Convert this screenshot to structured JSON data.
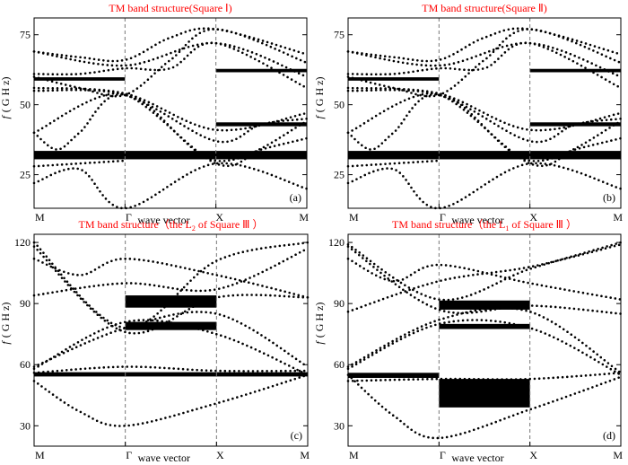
{
  "chart_data": [
    {
      "type": "scatter",
      "title": "TM band structure(Square Ⅰ)",
      "panel_label": "(a)",
      "ylabel_italic": "f",
      "ylabel_unit": "( G H z)",
      "xlabel": "wave vector",
      "x_ticks": [
        "M",
        "Γ",
        "X",
        "M"
      ],
      "ylim": [
        13,
        81
      ],
      "y_ticks": [
        25,
        50,
        75
      ],
      "sym_lines_at": [
        1,
        2
      ],
      "gaps": [
        {
          "x": [
            0,
            3
          ],
          "y": [
            30.5,
            33.5
          ]
        },
        {
          "x": [
            0,
            1
          ],
          "y": [
            58.6,
            59.8
          ]
        },
        {
          "x": [
            2,
            3
          ],
          "y": [
            42.3,
            43.7
          ]
        },
        {
          "x": [
            2,
            3
          ],
          "y": [
            61.6,
            62.8
          ]
        }
      ],
      "bands": [
        [
          [
            0,
            28
          ],
          [
            1,
            30
          ]
        ],
        [
          [
            0,
            22
          ],
          [
            0.5,
            27
          ],
          [
            1,
            13
          ],
          [
            2,
            29
          ],
          [
            3,
            20
          ]
        ],
        [
          [
            0,
            40
          ],
          [
            0.25,
            34
          ],
          [
            0.5,
            40
          ],
          [
            1,
            53.5
          ],
          [
            2,
            29
          ],
          [
            2.5,
            34
          ],
          [
            3,
            38
          ]
        ],
        [
          [
            0,
            40
          ],
          [
            1,
            54
          ],
          [
            2,
            30
          ],
          [
            3,
            44
          ]
        ],
        [
          [
            0,
            55
          ],
          [
            1,
            53.5
          ],
          [
            2,
            37
          ],
          [
            2.5,
            43
          ],
          [
            3,
            45
          ]
        ],
        [
          [
            0,
            56
          ],
          [
            1,
            54
          ],
          [
            2,
            41
          ],
          [
            3,
            47
          ]
        ],
        [
          [
            0,
            60
          ],
          [
            0.5,
            56
          ],
          [
            1,
            53.5
          ],
          [
            1.5,
            66
          ],
          [
            2,
            77
          ],
          [
            3,
            65
          ]
        ],
        [
          [
            0,
            61
          ],
          [
            0.5,
            61
          ],
          [
            1,
            63
          ],
          [
            1.5,
            63
          ],
          [
            2,
            72
          ],
          [
            3,
            56
          ]
        ],
        [
          [
            0,
            69
          ],
          [
            1,
            64
          ],
          [
            2,
            72
          ],
          [
            3,
            60
          ]
        ],
        [
          [
            0,
            69
          ],
          [
            0.5,
            67
          ],
          [
            1,
            66
          ],
          [
            1.5,
            74
          ],
          [
            2,
            77
          ],
          [
            3,
            68
          ]
        ]
      ]
    },
    {
      "type": "scatter",
      "title": "TM band structure(Square Ⅱ)",
      "panel_label": "(b)",
      "ylabel_italic": "f",
      "ylabel_unit": "( G H z)",
      "xlabel": "wave vector",
      "x_ticks": [
        "M",
        "Γ",
        "X",
        "M"
      ],
      "ylim": [
        13,
        81
      ],
      "y_ticks": [
        25,
        50,
        75
      ],
      "sym_lines_at": [
        1,
        2
      ],
      "gaps": [
        {
          "x": [
            0,
            3
          ],
          "y": [
            30.5,
            33.5
          ]
        },
        {
          "x": [
            0,
            1
          ],
          "y": [
            58.6,
            59.8
          ]
        },
        {
          "x": [
            2,
            3
          ],
          "y": [
            42.3,
            43.7
          ]
        },
        {
          "x": [
            2,
            3
          ],
          "y": [
            61.6,
            62.8
          ]
        }
      ],
      "bands": [
        [
          [
            0,
            28
          ],
          [
            1,
            30
          ]
        ],
        [
          [
            0,
            22
          ],
          [
            0.5,
            27
          ],
          [
            1,
            13
          ],
          [
            2,
            29
          ],
          [
            3,
            20
          ]
        ],
        [
          [
            0,
            40
          ],
          [
            0.25,
            34
          ],
          [
            0.5,
            40
          ],
          [
            1,
            53.5
          ],
          [
            2,
            29
          ],
          [
            2.5,
            34
          ],
          [
            3,
            38
          ]
        ],
        [
          [
            0,
            40
          ],
          [
            1,
            54
          ],
          [
            2,
            30
          ],
          [
            3,
            44
          ]
        ],
        [
          [
            0,
            55
          ],
          [
            1,
            53.5
          ],
          [
            2,
            37
          ],
          [
            2.5,
            43
          ],
          [
            3,
            45
          ]
        ],
        [
          [
            0,
            56
          ],
          [
            1,
            54
          ],
          [
            2,
            41
          ],
          [
            3,
            47
          ]
        ],
        [
          [
            0,
            60
          ],
          [
            0.5,
            56
          ],
          [
            1,
            53.5
          ],
          [
            1.5,
            66
          ],
          [
            2,
            77
          ],
          [
            3,
            65
          ]
        ],
        [
          [
            0,
            61
          ],
          [
            0.5,
            61
          ],
          [
            1,
            63
          ],
          [
            1.5,
            63
          ],
          [
            2,
            72
          ],
          [
            3,
            56
          ]
        ],
        [
          [
            0,
            69
          ],
          [
            1,
            64
          ],
          [
            2,
            72
          ],
          [
            3,
            60
          ]
        ],
        [
          [
            0,
            69
          ],
          [
            0.5,
            67
          ],
          [
            1,
            66
          ],
          [
            1.5,
            74
          ],
          [
            2,
            77
          ],
          [
            3,
            68
          ]
        ]
      ]
    },
    {
      "type": "scatter",
      "title_parts": [
        "TM band structure（the L",
        "2",
        " of Square Ⅲ ）"
      ],
      "panel_label": "(c)",
      "ylabel_italic": "f",
      "ylabel_unit": "( G H z)",
      "xlabel": "wave vector",
      "x_ticks": [
        "M",
        "Γ",
        "X",
        "M"
      ],
      "ylim": [
        20,
        124
      ],
      "y_ticks": [
        30,
        60,
        90,
        120
      ],
      "sym_lines_at": [
        1,
        2
      ],
      "gaps": [
        {
          "x": [
            0,
            3
          ],
          "y": [
            54.2,
            56.3
          ]
        },
        {
          "x": [
            1,
            2
          ],
          "y": [
            77,
            81
          ]
        },
        {
          "x": [
            1,
            2
          ],
          "y": [
            88,
            94
          ]
        }
      ],
      "bands": [
        [
          [
            0,
            52
          ],
          [
            0.5,
            37
          ],
          [
            1,
            30
          ],
          [
            2,
            41
          ],
          [
            3,
            55
          ]
        ],
        [
          [
            0,
            56
          ],
          [
            1,
            59
          ],
          [
            2,
            57
          ],
          [
            3,
            57
          ]
        ],
        [
          [
            0,
            58
          ],
          [
            1,
            81
          ],
          [
            2,
            75
          ],
          [
            3,
            55
          ]
        ],
        [
          [
            0,
            59
          ],
          [
            1,
            78
          ],
          [
            2,
            85
          ],
          [
            3,
            59
          ]
        ],
        [
          [
            0,
            94
          ],
          [
            1,
            100
          ],
          [
            2,
            97
          ],
          [
            3,
            117
          ]
        ],
        [
          [
            0,
            112
          ],
          [
            0.5,
            104
          ],
          [
            1,
            112
          ],
          [
            2,
            104
          ],
          [
            3,
            93
          ]
        ],
        [
          [
            0,
            118
          ],
          [
            1,
            76
          ],
          [
            2,
            93
          ],
          [
            3,
            93
          ]
        ],
        [
          [
            0,
            120
          ],
          [
            1,
            78
          ],
          [
            2,
            111
          ],
          [
            3,
            120
          ]
        ]
      ]
    },
    {
      "type": "scatter",
      "title_parts": [
        "TM band structure（the L",
        "1",
        " of Square Ⅲ ）"
      ],
      "panel_label": "(d)",
      "ylabel_italic": "f",
      "ylabel_unit": "( G H z)",
      "xlabel": "wave vector",
      "x_ticks": [
        "M",
        "Γ",
        "X",
        "M"
      ],
      "ylim": [
        20,
        124
      ],
      "y_ticks": [
        30,
        60,
        90,
        120
      ],
      "sym_lines_at": [
        1,
        2
      ],
      "gaps": [
        {
          "x": [
            0,
            1
          ],
          "y": [
            53.5,
            56
          ]
        },
        {
          "x": [
            1,
            2
          ],
          "y": [
            39,
            53
          ]
        },
        {
          "x": [
            1,
            2
          ],
          "y": [
            77.5,
            80
          ]
        },
        {
          "x": [
            1,
            2
          ],
          "y": [
            87,
            91.5
          ]
        }
      ],
      "bands": [
        [
          [
            0,
            55
          ],
          [
            0.5,
            35
          ],
          [
            1,
            24
          ],
          [
            2,
            38
          ],
          [
            3,
            54
          ]
        ],
        [
          [
            0,
            52
          ],
          [
            1,
            53
          ],
          [
            2,
            53
          ],
          [
            3,
            56
          ]
        ],
        [
          [
            0,
            58
          ],
          [
            1,
            80
          ],
          [
            2,
            78
          ],
          [
            3,
            55
          ]
        ],
        [
          [
            0,
            59
          ],
          [
            1,
            82
          ],
          [
            2,
            86
          ],
          [
            3,
            56
          ]
        ],
        [
          [
            0,
            86
          ],
          [
            1,
            101
          ],
          [
            2,
            108
          ],
          [
            3,
            119
          ]
        ],
        [
          [
            0,
            118
          ],
          [
            1,
            87
          ],
          [
            2,
            89
          ],
          [
            3,
            85
          ]
        ],
        [
          [
            0,
            119
          ],
          [
            1,
            92
          ],
          [
            2,
            107
          ],
          [
            3,
            120
          ]
        ],
        [
          [
            0,
            112
          ],
          [
            0.5,
            101
          ],
          [
            1,
            109
          ],
          [
            2,
            100
          ],
          [
            3,
            92
          ]
        ]
      ]
    }
  ]
}
